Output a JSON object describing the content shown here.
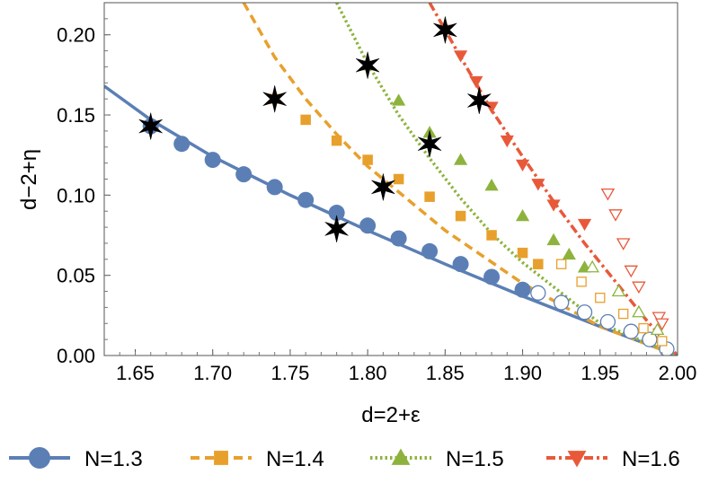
{
  "chart_data": {
    "type": "scatter",
    "title": "",
    "xlabel": "d=2+ε",
    "ylabel": "d−2+η",
    "xlim": [
      1.63,
      2.0
    ],
    "ylim": [
      0.0,
      0.22
    ],
    "xticks": [
      1.65,
      1.7,
      1.75,
      1.8,
      1.85,
      1.9,
      1.95,
      2.0
    ],
    "xtick_labels": [
      "1.65",
      "1.70",
      "1.75",
      "1.80",
      "1.85",
      "1.90",
      "1.95",
      "2.00"
    ],
    "yticks": [
      0.0,
      0.05,
      0.1,
      0.15,
      0.2
    ],
    "ytick_labels": [
      "0.00",
      "0.05",
      "0.10",
      "0.15",
      "0.20"
    ],
    "grid": false,
    "legend_position": "bottom",
    "series": [
      {
        "name": "N=1.3",
        "color": "#5b7fb5",
        "line_style": "solid",
        "marker": "circle",
        "curve": [
          [
            1.63,
            0.168
          ],
          [
            1.66,
            0.147
          ],
          [
            1.7,
            0.124
          ],
          [
            1.75,
            0.1
          ],
          [
            1.8,
            0.078
          ],
          [
            1.85,
            0.057
          ],
          [
            1.9,
            0.037
          ],
          [
            1.95,
            0.018
          ],
          [
            2.0,
            0.0
          ]
        ],
        "filled_points": [
          [
            1.66,
            0.143
          ],
          [
            1.68,
            0.132
          ],
          [
            1.7,
            0.122
          ],
          [
            1.72,
            0.113
          ],
          [
            1.74,
            0.105
          ],
          [
            1.76,
            0.097
          ],
          [
            1.78,
            0.089
          ],
          [
            1.8,
            0.081
          ],
          [
            1.82,
            0.073
          ],
          [
            1.84,
            0.065
          ],
          [
            1.86,
            0.057
          ],
          [
            1.88,
            0.049
          ],
          [
            1.9,
            0.041
          ]
        ],
        "open_points": [
          [
            1.91,
            0.039
          ],
          [
            1.925,
            0.033
          ],
          [
            1.94,
            0.027
          ],
          [
            1.955,
            0.021
          ],
          [
            1.97,
            0.015
          ],
          [
            1.982,
            0.01
          ],
          [
            1.993,
            0.004
          ]
        ]
      },
      {
        "name": "N=1.4",
        "color": "#e8a02c",
        "line_style": "dashed",
        "marker": "square",
        "curve": [
          [
            1.72,
            0.22
          ],
          [
            1.74,
            0.186
          ],
          [
            1.76,
            0.16
          ],
          [
            1.78,
            0.138
          ],
          [
            1.8,
            0.118
          ],
          [
            1.85,
            0.078
          ],
          [
            1.9,
            0.045
          ],
          [
            1.95,
            0.018
          ],
          [
            2.0,
            0.0
          ]
        ],
        "filled_points": [
          [
            1.74,
            0.16
          ],
          [
            1.76,
            0.147
          ],
          [
            1.78,
            0.134
          ],
          [
            1.8,
            0.122
          ],
          [
            1.82,
            0.11
          ],
          [
            1.84,
            0.099
          ],
          [
            1.86,
            0.087
          ],
          [
            1.88,
            0.075
          ],
          [
            1.9,
            0.064
          ],
          [
            1.91,
            0.057
          ]
        ],
        "open_points": [
          [
            1.925,
            0.057
          ],
          [
            1.938,
            0.046
          ],
          [
            1.95,
            0.036
          ],
          [
            1.965,
            0.026
          ],
          [
            1.978,
            0.017
          ],
          [
            1.99,
            0.009
          ]
        ]
      },
      {
        "name": "N=1.5",
        "color": "#8db33d",
        "line_style": "dotted",
        "marker": "triangle-up",
        "curve": [
          [
            1.78,
            0.22
          ],
          [
            1.8,
            0.182
          ],
          [
            1.82,
            0.15
          ],
          [
            1.84,
            0.123
          ],
          [
            1.86,
            0.098
          ],
          [
            1.88,
            0.076
          ],
          [
            1.9,
            0.058
          ],
          [
            1.95,
            0.02
          ],
          [
            2.0,
            0.0
          ]
        ],
        "filled_points": [
          [
            1.8,
            0.181
          ],
          [
            1.82,
            0.159
          ],
          [
            1.84,
            0.139
          ],
          [
            1.86,
            0.122
          ],
          [
            1.88,
            0.106
          ],
          [
            1.9,
            0.087
          ],
          [
            1.92,
            0.072
          ],
          [
            1.93,
            0.063
          ],
          [
            1.94,
            0.055
          ]
        ],
        "open_points": [
          [
            1.945,
            0.055
          ],
          [
            1.962,
            0.04
          ],
          [
            1.975,
            0.027
          ],
          [
            1.987,
            0.016
          ]
        ]
      },
      {
        "name": "N=1.6",
        "color": "#e8593a",
        "line_style": "dashdot",
        "marker": "triangle-down",
        "curve": [
          [
            1.84,
            0.22
          ],
          [
            1.86,
            0.186
          ],
          [
            1.88,
            0.153
          ],
          [
            1.9,
            0.124
          ],
          [
            1.92,
            0.096
          ],
          [
            1.94,
            0.07
          ],
          [
            1.96,
            0.046
          ],
          [
            1.98,
            0.022
          ],
          [
            2.0,
            0.0
          ]
        ],
        "filled_points": [
          [
            1.85,
            0.203
          ],
          [
            1.86,
            0.187
          ],
          [
            1.87,
            0.171
          ],
          [
            1.88,
            0.155
          ],
          [
            1.89,
            0.134
          ],
          [
            1.9,
            0.119
          ],
          [
            1.91,
            0.107
          ],
          [
            1.92,
            0.094
          ],
          [
            1.94,
            0.082
          ]
        ],
        "open_points": [
          [
            1.955,
            0.101
          ],
          [
            1.96,
            0.088
          ],
          [
            1.965,
            0.07
          ],
          [
            1.97,
            0.053
          ],
          [
            1.975,
            0.043
          ],
          [
            1.988,
            0.024
          ],
          [
            1.99,
            0.02
          ]
        ]
      }
    ],
    "star_points": [
      [
        1.66,
        0.143
      ],
      [
        1.74,
        0.16
      ],
      [
        1.78,
        0.079
      ],
      [
        1.8,
        0.181
      ],
      [
        1.81,
        0.105
      ],
      [
        1.84,
        0.132
      ],
      [
        1.85,
        0.203
      ],
      [
        1.872,
        0.159
      ]
    ]
  }
}
